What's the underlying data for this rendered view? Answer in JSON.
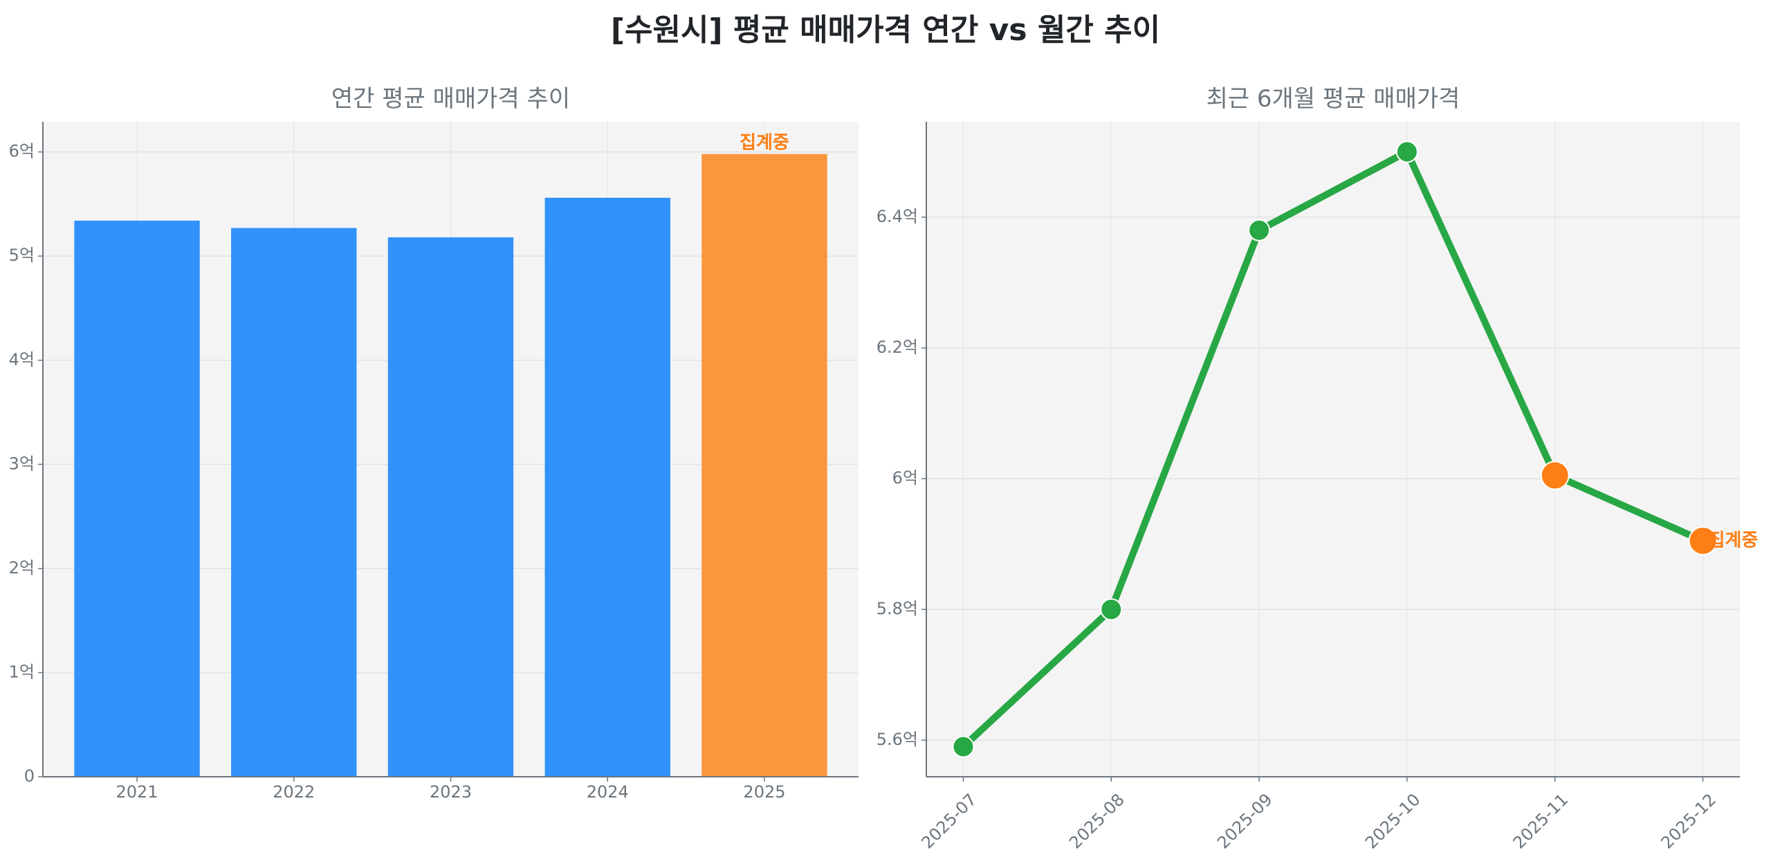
{
  "title": "[수원시] 평균 매매가격 연간 vs 월간 추이",
  "colors": {
    "bar": "#3192fb",
    "bar_pending": "#f9963e",
    "line": "#28a745",
    "marker_pending": "#fd7e14",
    "annotation": "#fd7e14",
    "text": "#6c757d",
    "plot_bg": "#f4f4f4"
  },
  "chart_data": [
    {
      "type": "bar",
      "title": "연간 평균 매매가격 추이",
      "categories": [
        "2021",
        "2022",
        "2023",
        "2024",
        "2025"
      ],
      "values": [
        5.34,
        5.27,
        5.18,
        5.56,
        5.98
      ],
      "pending": [
        false,
        false,
        false,
        false,
        true
      ],
      "unit": "억",
      "ylim": [
        0,
        6.29
      ],
      "yticks": [
        0,
        1,
        2,
        3,
        4,
        5,
        6
      ],
      "ytick_labels": [
        "0",
        "1억",
        "2억",
        "3억",
        "4억",
        "5억",
        "6억"
      ],
      "annotation": "집계중",
      "grid": true
    },
    {
      "type": "line",
      "title": "최근 6개월 평균 매매가격",
      "categories": [
        "2025-07",
        "2025-08",
        "2025-09",
        "2025-10",
        "2025-11",
        "2025-12"
      ],
      "values": [
        5.59,
        5.8,
        6.38,
        6.5,
        6.005,
        5.905
      ],
      "pending": [
        false,
        false,
        false,
        false,
        true,
        true
      ],
      "unit": "억",
      "ylim": [
        5.544,
        6.546
      ],
      "yticks": [
        5.6,
        5.8,
        6.0,
        6.2,
        6.4
      ],
      "ytick_labels": [
        "5.6억",
        "5.8억",
        "6억",
        "6.2억",
        "6.4억"
      ],
      "annotation": "집계중",
      "grid": true
    }
  ]
}
